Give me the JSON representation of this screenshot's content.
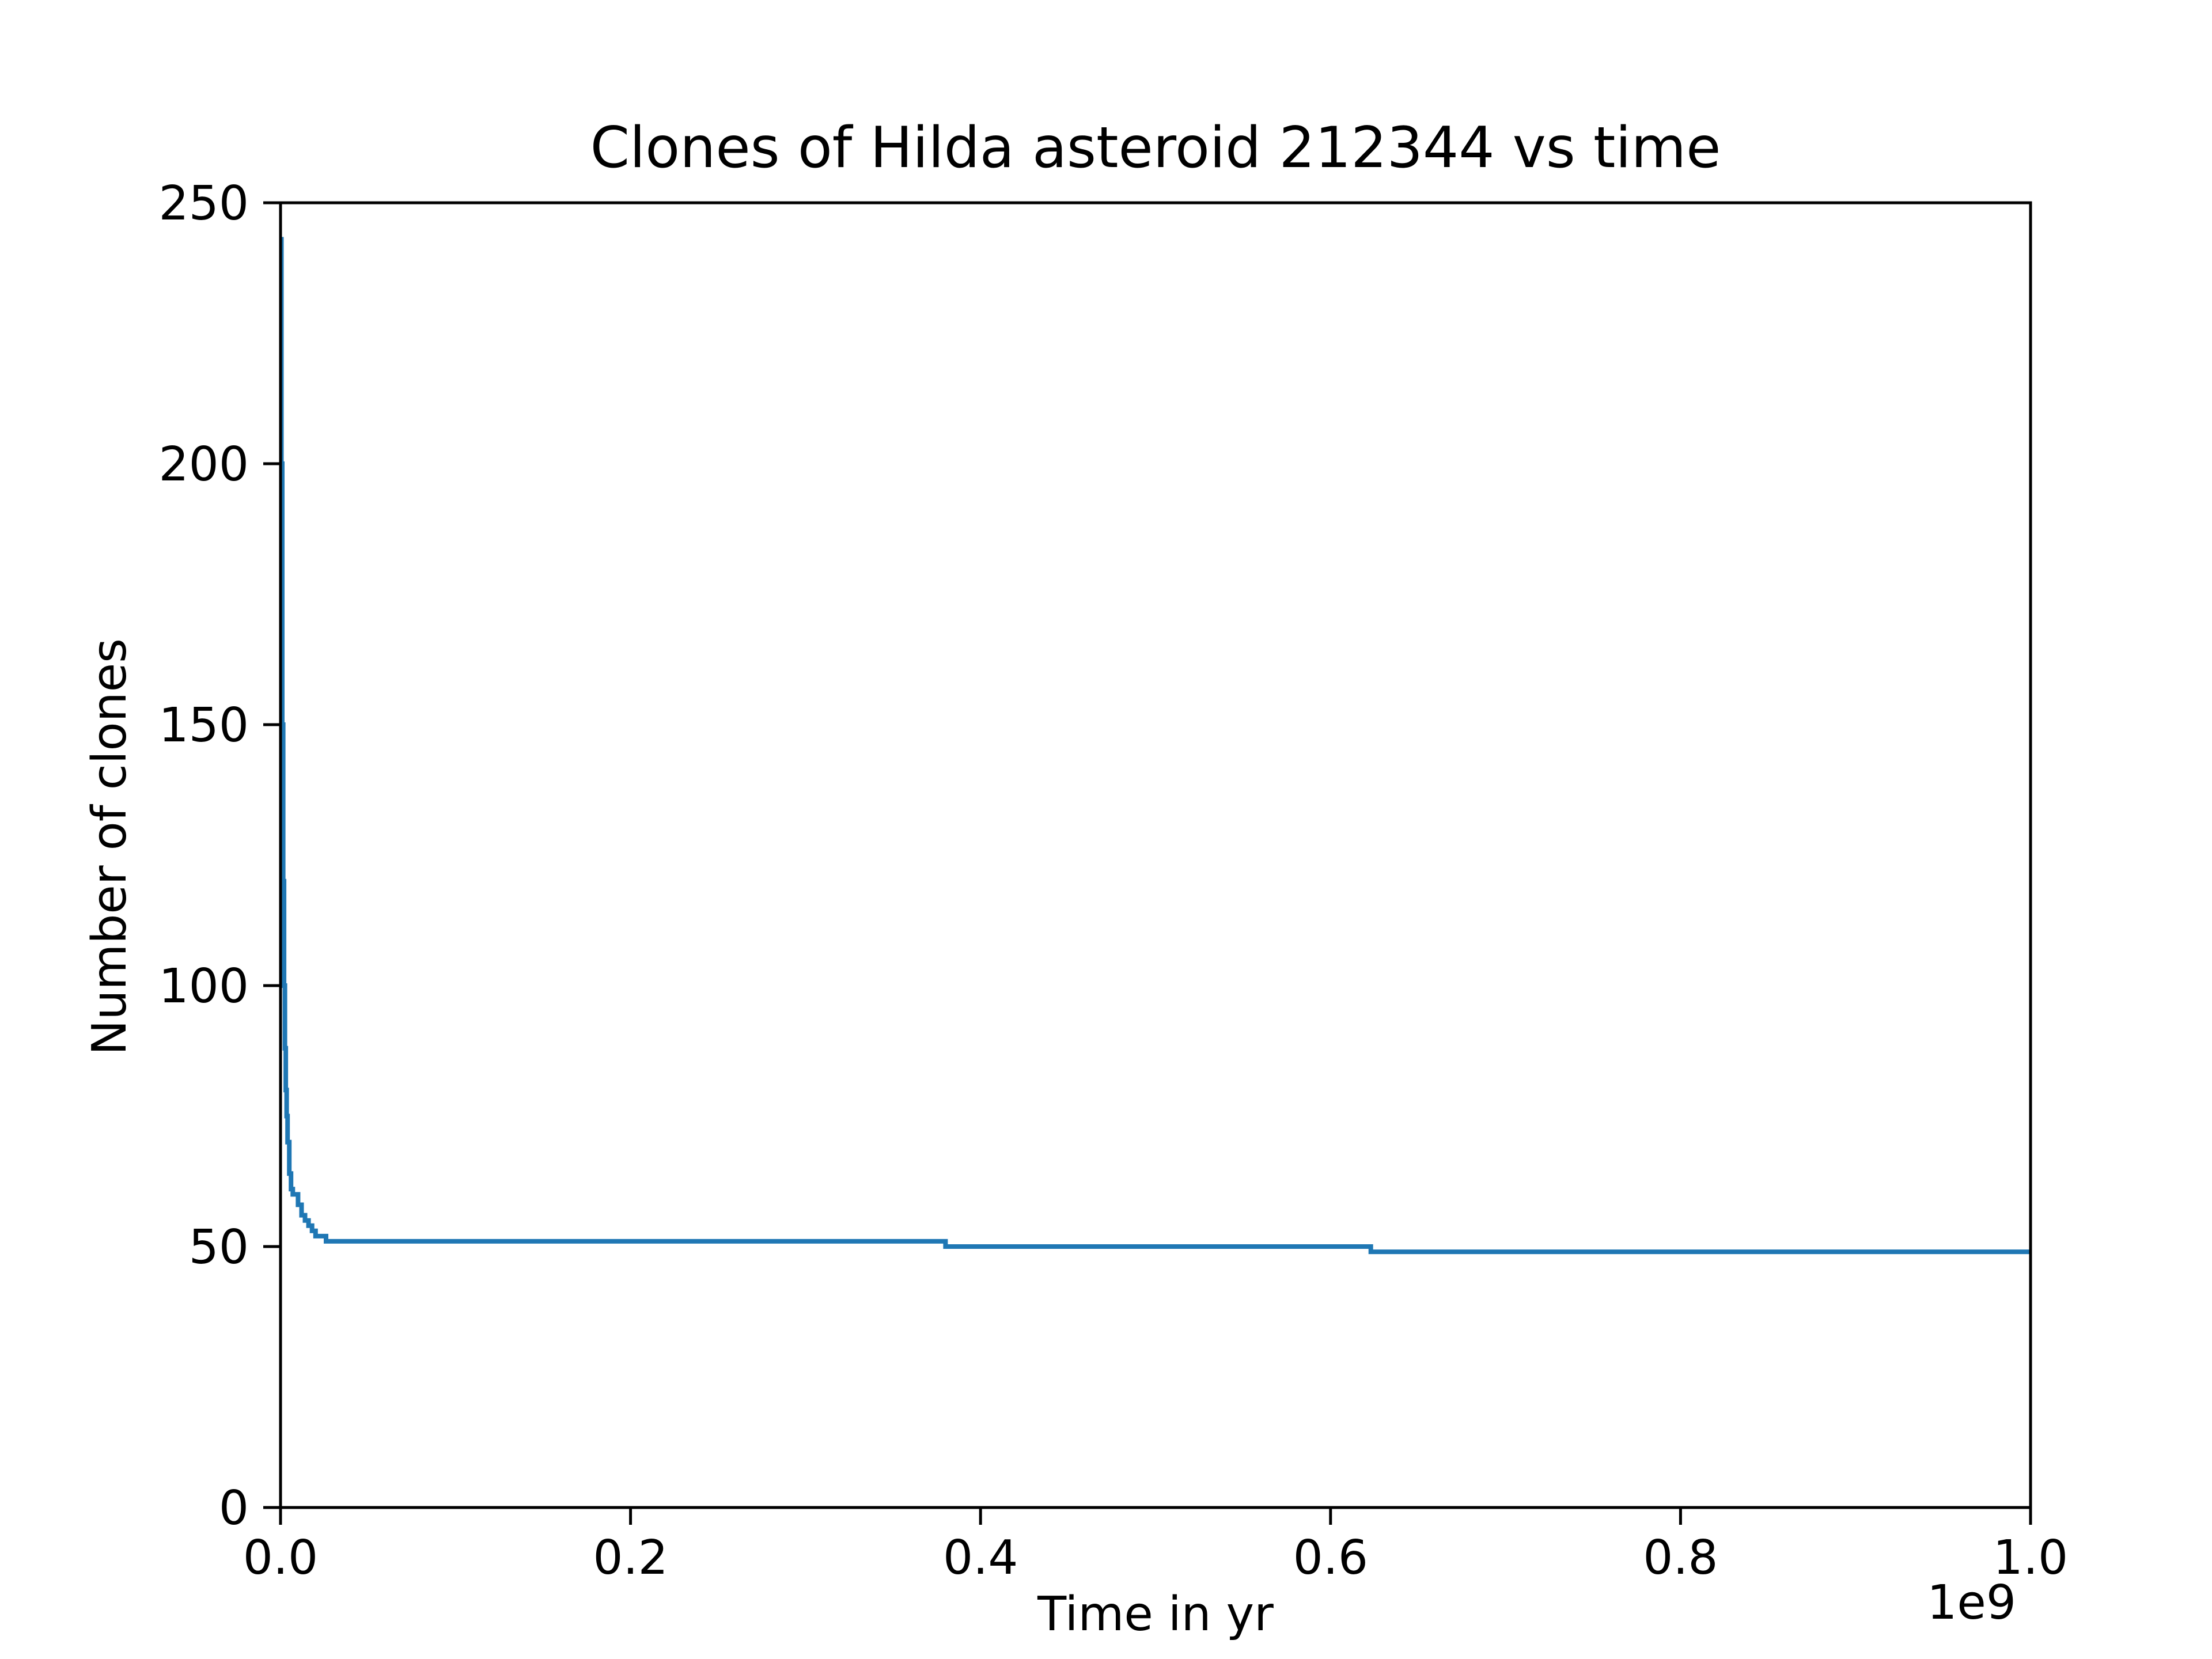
{
  "chart_data": {
    "type": "line",
    "title": "Clones of Hilda asteroid 212344 vs time",
    "xlabel": "Time in yr",
    "ylabel": "Number of clones",
    "x_offset_label": "1e9",
    "xlim": [
      0,
      1.0
    ],
    "ylim": [
      0,
      250
    ],
    "xticks": [
      0.0,
      0.2,
      0.4,
      0.6,
      0.8,
      1.0
    ],
    "xtick_labels": [
      "0.0",
      "0.2",
      "0.4",
      "0.6",
      "0.8",
      "1.0"
    ],
    "yticks": [
      0,
      50,
      100,
      150,
      200,
      250
    ],
    "ytick_labels": [
      "0",
      "50",
      "100",
      "150",
      "200",
      "250"
    ],
    "grid": false,
    "series": [
      {
        "color": "#1f77b4",
        "x": [
          0.0,
          0.0005,
          0.001,
          0.0015,
          0.002,
          0.0025,
          0.003,
          0.0035,
          0.004,
          0.005,
          0.006,
          0.007,
          0.008,
          0.01,
          0.012,
          0.014,
          0.016,
          0.018,
          0.02,
          0.022,
          0.026,
          0.38,
          0.623,
          1.0
        ],
        "y": [
          243,
          200,
          150,
          120,
          100,
          88,
          80,
          75,
          70,
          64,
          61,
          60,
          60,
          58,
          56,
          55,
          54,
          53,
          52,
          52,
          51,
          50,
          49,
          49
        ]
      }
    ]
  }
}
